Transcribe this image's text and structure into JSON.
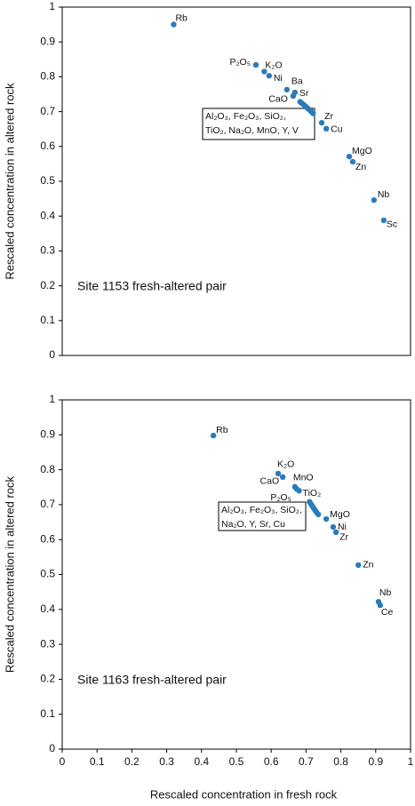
{
  "chart_data": [
    {
      "type": "scatter",
      "ylabel": "Rescaled concentration in altered rock",
      "annotation": "Site 1153 fresh-altered pair",
      "color": "#2b7bb9",
      "x": [
        0.32,
        0.556,
        0.58,
        0.594,
        0.645,
        0.663,
        0.668,
        0.683,
        0.688,
        0.694,
        0.699,
        0.704,
        0.709,
        0.714,
        0.72,
        0.745,
        0.758,
        0.824,
        0.834,
        0.895,
        0.923
      ],
      "y": [
        0.95,
        0.834,
        0.815,
        0.803,
        0.763,
        0.745,
        0.755,
        0.728,
        0.724,
        0.719,
        0.715,
        0.71,
        0.706,
        0.701,
        0.695,
        0.668,
        0.651,
        0.571,
        0.556,
        0.446,
        0.388
      ],
      "point_labels": [
        "Rb",
        "P₂O₅",
        "K₂O",
        "Ni",
        "Ba",
        "CaO",
        "Sr",
        null,
        null,
        null,
        null,
        null,
        null,
        null,
        null,
        "Zr",
        "Cu",
        "MgO",
        "Zn",
        "Nb",
        "Sc"
      ],
      "box_label": [
        "Al₂O₃, Fe₂O₃, SiO₂,",
        "TiO₂, Na₂O, MnO, Y, V"
      ],
      "xlim": [
        0,
        1
      ],
      "ylim": [
        0,
        1
      ],
      "yticks": [
        0,
        0.1,
        0.2,
        0.3,
        0.4,
        0.5,
        0.6,
        0.7,
        0.8,
        0.9,
        1
      ]
    },
    {
      "type": "scatter",
      "ylabel": "Rescaled concentration in altered rock",
      "xlabel": "Rescaled concentration in fresh rock",
      "annotation": "Site 1163 fresh-altered pair",
      "color": "#2b7bb9",
      "x": [
        0.434,
        0.62,
        0.633,
        0.668,
        0.673,
        0.68,
        0.71,
        0.714,
        0.718,
        0.722,
        0.726,
        0.73,
        0.735,
        0.758,
        0.778,
        0.786,
        0.85,
        0.908,
        0.913
      ],
      "y": [
        0.898,
        0.789,
        0.779,
        0.751,
        0.745,
        0.74,
        0.708,
        0.702,
        0.696,
        0.69,
        0.684,
        0.678,
        0.672,
        0.659,
        0.636,
        0.621,
        0.527,
        0.422,
        0.412
      ],
      "point_labels": [
        "Rb",
        "K₂O",
        "CaO",
        "MnO",
        "P₂O₅",
        "TiO₂",
        null,
        null,
        null,
        null,
        null,
        null,
        null,
        "MgO",
        "Ni",
        "Zr",
        "Zn",
        "Nb",
        "Ce"
      ],
      "box_label": [
        "Al₂O₃, Fe₂O₃, SiO₂,",
        "Na₂O, Y, Sr, Cu"
      ],
      "xlim": [
        0,
        1
      ],
      "ylim": [
        0,
        1
      ],
      "xticks": [
        0,
        0.1,
        0.2,
        0.3,
        0.4,
        0.5,
        0.6,
        0.7,
        0.8,
        0.9,
        1
      ],
      "yticks": [
        0,
        0.1,
        0.2,
        0.3,
        0.4,
        0.5,
        0.6,
        0.7,
        0.8,
        0.9,
        1
      ]
    }
  ]
}
